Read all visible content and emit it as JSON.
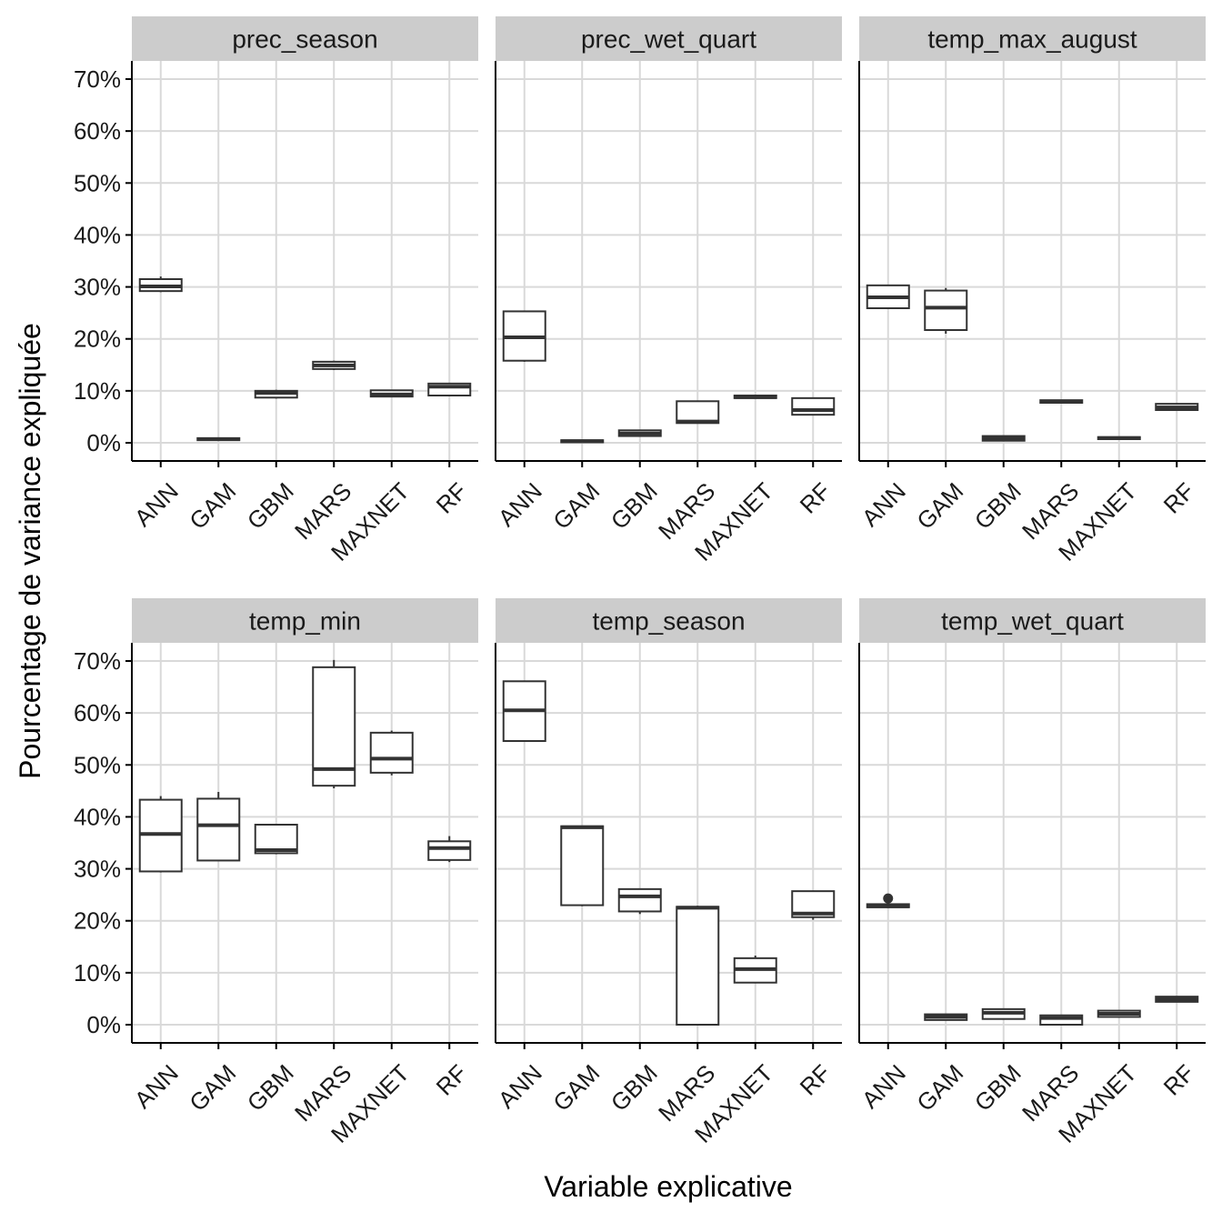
{
  "chart_data": {
    "type": "boxplot",
    "facet_layout": "2x3",
    "xlabel": "Variable explicative",
    "ylabel": "Pourcentage de variance expliquée",
    "ylim": [
      -3.5,
      73.5
    ],
    "y_ticks": [
      "0%",
      "10%",
      "20%",
      "30%",
      "40%",
      "50%",
      "60%",
      "70%"
    ],
    "y_tick_values": [
      0,
      10,
      20,
      30,
      40,
      50,
      60,
      70
    ],
    "categories": [
      "ANN",
      "GAM",
      "GBM",
      "MARS",
      "MAXNET",
      "RF"
    ],
    "grid": true,
    "colors": {
      "strip": "#cccccc",
      "grid": "#d9d9d9",
      "box_line": "#333333",
      "axis": "#000000"
    },
    "panels": [
      {
        "title": "prec_season",
        "boxes": [
          {
            "category": "ANN",
            "min": 29.0,
            "q1": 29.2,
            "median": 30.1,
            "q3": 31.5,
            "max": 32.0
          },
          {
            "category": "GAM",
            "min": 0.4,
            "q1": 0.5,
            "median": 0.7,
            "q3": 0.9,
            "max": 1.0
          },
          {
            "category": "GBM",
            "min": 8.5,
            "q1": 8.7,
            "median": 9.6,
            "q3": 10.0,
            "max": 10.2
          },
          {
            "category": "MARS",
            "min": 14.0,
            "q1": 14.2,
            "median": 14.9,
            "q3": 15.6,
            "max": 15.8
          },
          {
            "category": "MAXNET",
            "min": 8.8,
            "q1": 8.9,
            "median": 9.3,
            "q3": 10.1,
            "max": 10.2
          },
          {
            "category": "RF",
            "min": 9.0,
            "q1": 9.1,
            "median": 10.8,
            "q3": 11.4,
            "max": 11.5
          }
        ]
      },
      {
        "title": "prec_wet_quart",
        "boxes": [
          {
            "category": "ANN",
            "min": 15.6,
            "q1": 15.8,
            "median": 20.3,
            "q3": 25.3,
            "max": 25.3
          },
          {
            "category": "GAM",
            "min": 0.0,
            "q1": 0.1,
            "median": 0.3,
            "q3": 0.5,
            "max": 0.6
          },
          {
            "category": "GBM",
            "min": 1.2,
            "q1": 1.3,
            "median": 1.8,
            "q3": 2.4,
            "max": 2.5
          },
          {
            "category": "MARS",
            "min": 3.7,
            "q1": 3.8,
            "median": 4.1,
            "q3": 8.0,
            "max": 8.0
          },
          {
            "category": "MAXNET",
            "min": 8.5,
            "q1": 8.6,
            "median": 8.8,
            "q3": 9.1,
            "max": 9.2
          },
          {
            "category": "RF",
            "min": 5.3,
            "q1": 5.4,
            "median": 6.3,
            "q3": 8.6,
            "max": 8.7
          }
        ]
      },
      {
        "title": "temp_max_august",
        "boxes": [
          {
            "category": "ANN",
            "min": 25.8,
            "q1": 25.9,
            "median": 28.0,
            "q3": 30.3,
            "max": 30.3
          },
          {
            "category": "GAM",
            "min": 21.0,
            "q1": 21.7,
            "median": 26.0,
            "q3": 29.3,
            "max": 29.8
          },
          {
            "category": "GBM",
            "min": 0.3,
            "q1": 0.4,
            "median": 0.8,
            "q3": 1.3,
            "max": 1.4
          },
          {
            "category": "MARS",
            "min": 7.6,
            "q1": 7.7,
            "median": 7.9,
            "q3": 8.2,
            "max": 8.3
          },
          {
            "category": "MAXNET",
            "min": 0.6,
            "q1": 0.7,
            "median": 0.9,
            "q3": 1.1,
            "max": 1.2
          },
          {
            "category": "RF",
            "min": 6.2,
            "q1": 6.3,
            "median": 6.8,
            "q3": 7.5,
            "max": 7.6
          }
        ]
      },
      {
        "title": "temp_min",
        "boxes": [
          {
            "category": "ANN",
            "min": 29.3,
            "q1": 29.5,
            "median": 36.7,
            "q3": 43.3,
            "max": 44.0
          },
          {
            "category": "GAM",
            "min": 31.5,
            "q1": 31.6,
            "median": 38.4,
            "q3": 43.5,
            "max": 44.8
          },
          {
            "category": "GBM",
            "min": 32.8,
            "q1": 33.0,
            "median": 33.6,
            "q3": 38.5,
            "max": 38.5
          },
          {
            "category": "MARS",
            "min": 45.5,
            "q1": 46.0,
            "median": 49.2,
            "q3": 68.8,
            "max": 70.2
          },
          {
            "category": "MAXNET",
            "min": 48.0,
            "q1": 48.5,
            "median": 51.2,
            "q3": 56.2,
            "max": 56.6
          },
          {
            "category": "RF",
            "min": 31.3,
            "q1": 31.7,
            "median": 34.0,
            "q3": 35.3,
            "max": 36.3
          }
        ]
      },
      {
        "title": "temp_season",
        "boxes": [
          {
            "category": "ANN",
            "min": 54.5,
            "q1": 54.6,
            "median": 60.5,
            "q3": 66.1,
            "max": 66.2
          },
          {
            "category": "GAM",
            "min": 22.8,
            "q1": 23.0,
            "median": 38.0,
            "q3": 38.2,
            "max": 38.3
          },
          {
            "category": "GBM",
            "min": 21.3,
            "q1": 21.8,
            "median": 24.7,
            "q3": 26.1,
            "max": 26.2
          },
          {
            "category": "MARS",
            "min": 0.0,
            "q1": 0.0,
            "median": 22.5,
            "q3": 22.7,
            "max": 22.9
          },
          {
            "category": "MAXNET",
            "min": 8.0,
            "q1": 8.1,
            "median": 10.7,
            "q3": 12.8,
            "max": 13.3
          },
          {
            "category": "RF",
            "min": 20.2,
            "q1": 20.7,
            "median": 21.4,
            "q3": 25.7,
            "max": 25.8
          }
        ]
      },
      {
        "title": "temp_wet_quart",
        "boxes": [
          {
            "category": "ANN",
            "min": 22.5,
            "q1": 22.6,
            "median": 22.8,
            "q3": 23.2,
            "max": 23.3,
            "outliers": [
              24.3
            ]
          },
          {
            "category": "GAM",
            "min": 0.8,
            "q1": 0.9,
            "median": 1.5,
            "q3": 2.0,
            "max": 2.1
          },
          {
            "category": "GBM",
            "min": 1.0,
            "q1": 1.1,
            "median": 2.3,
            "q3": 3.0,
            "max": 3.1
          },
          {
            "category": "MARS",
            "min": 0.0,
            "q1": 0.0,
            "median": 1.3,
            "q3": 1.8,
            "max": 1.9
          },
          {
            "category": "MAXNET",
            "min": 1.4,
            "q1": 1.5,
            "median": 2.1,
            "q3": 2.7,
            "max": 2.8
          },
          {
            "category": "RF",
            "min": 4.3,
            "q1": 4.4,
            "median": 4.9,
            "q3": 5.4,
            "max": 5.5
          }
        ]
      }
    ]
  }
}
